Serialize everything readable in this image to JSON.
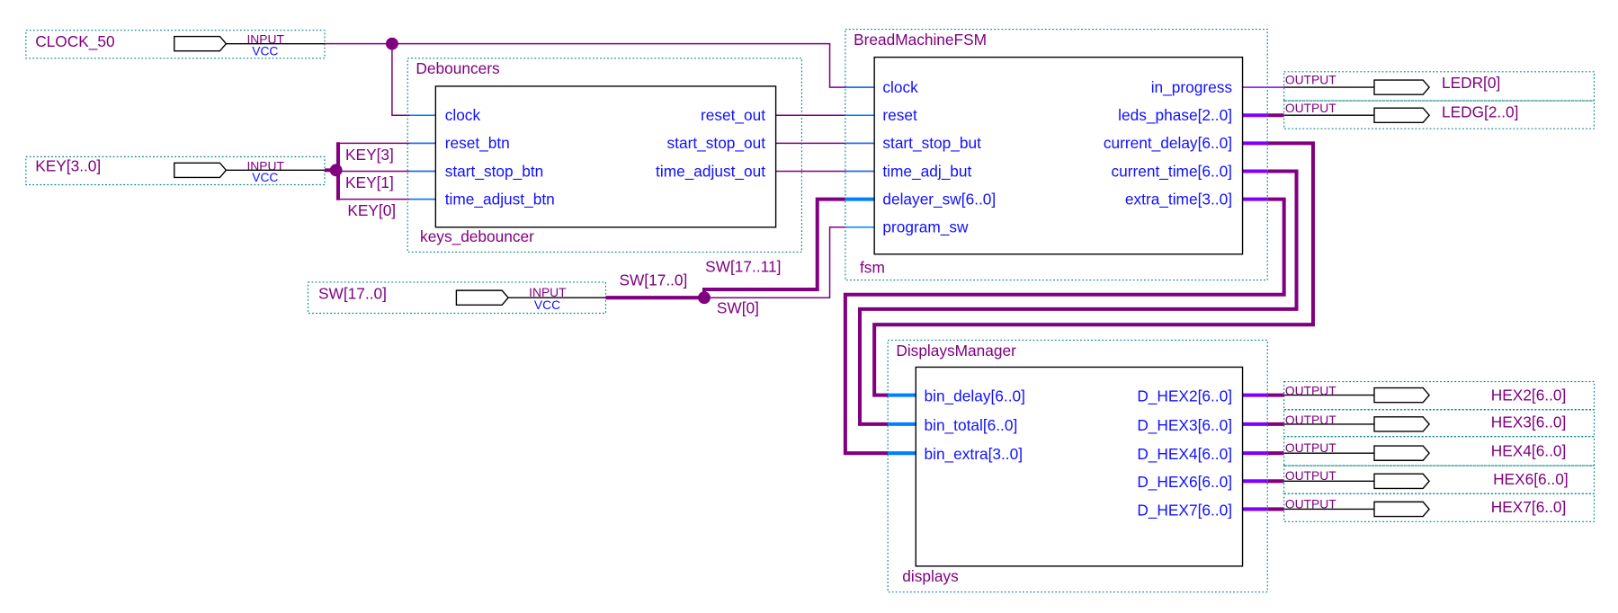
{
  "inputs": {
    "clock": {
      "name": "CLOCK_50",
      "type": "INPUT",
      "default": "VCC"
    },
    "key": {
      "name": "KEY[3..0]",
      "type": "INPUT",
      "default": "VCC"
    },
    "sw": {
      "name": "SW[17..0]",
      "type": "INPUT",
      "default": "VCC"
    }
  },
  "bus_labels": {
    "key3": "KEY[3]",
    "key1": "KEY[1]",
    "key0": "KEY[0]",
    "sw_all": "SW[17..0]",
    "sw_hi": "SW[17..11]",
    "sw0": "SW[0]"
  },
  "debouncers": {
    "module": "Debouncers",
    "instance": "keys_debouncer",
    "inputs": [
      "clock",
      "reset_btn",
      "start_stop_btn",
      "time_adjust_btn"
    ],
    "outputs": [
      "reset_out",
      "start_stop_out",
      "time_adjust_out"
    ]
  },
  "fsm": {
    "module": "BreadMachineFSM",
    "instance": "fsm",
    "inputs": [
      "clock",
      "reset",
      "start_stop_but",
      "time_adj_but",
      "delayer_sw[6..0]",
      "program_sw"
    ],
    "outputs": [
      "in_progress",
      "leds_phase[2..0]",
      "current_delay[6..0]",
      "current_time[6..0]",
      "extra_time[3..0]"
    ]
  },
  "displays": {
    "module": "DisplaysManager",
    "instance": "displays",
    "inputs": [
      "bin_delay[6..0]",
      "bin_total[6..0]",
      "bin_extra[3..0]"
    ],
    "outputs": [
      "D_HEX2[6..0]",
      "D_HEX3[6..0]",
      "D_HEX4[6..0]",
      "D_HEX6[6..0]",
      "D_HEX7[6..0]"
    ]
  },
  "outputs": [
    {
      "name": "LEDR[0]",
      "type": "OUTPUT"
    },
    {
      "name": "LEDG[2..0]",
      "type": "OUTPUT"
    },
    {
      "name": "HEX2[6..0]",
      "type": "OUTPUT"
    },
    {
      "name": "HEX3[6..0]",
      "type": "OUTPUT"
    },
    {
      "name": "HEX4[6..0]",
      "type": "OUTPUT"
    },
    {
      "name": "HEX6[6..0]",
      "type": "OUTPUT"
    },
    {
      "name": "HEX7[6..0]",
      "type": "OUTPUT"
    }
  ],
  "colors": {
    "wire": "#800080",
    "port_text": "#1010ff",
    "port_stub": "#0080ff",
    "output_bus": "#8000ff",
    "frame": "#008080"
  }
}
